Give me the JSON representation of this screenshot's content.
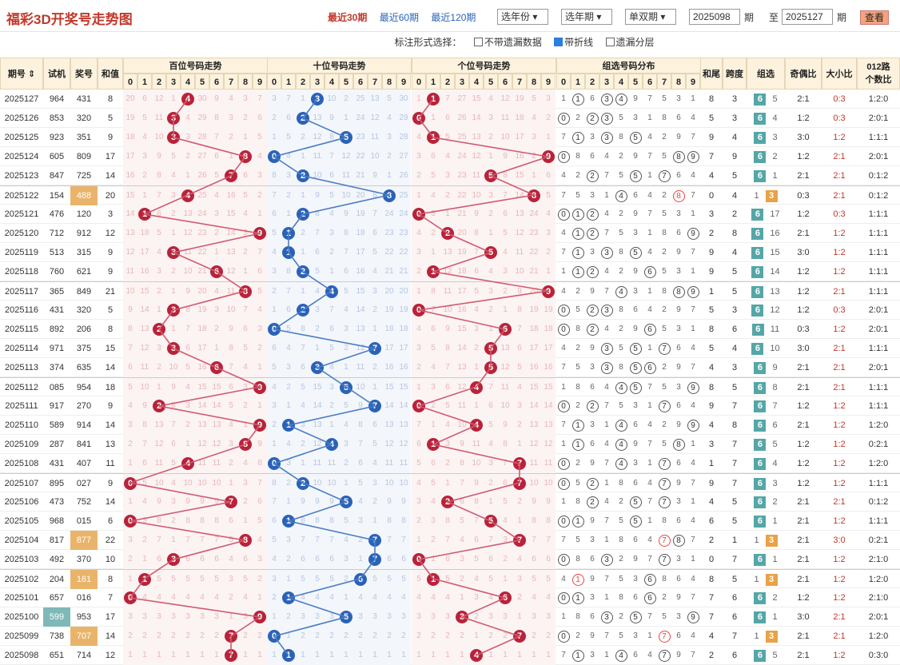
{
  "header": {
    "title": "福彩3D开奖号走势图",
    "periods": [
      "最近30期",
      "最近60期",
      "最近120期"
    ],
    "year_select": "选年份",
    "period_select": "选年期",
    "oddeven_select": "单双期",
    "from_value": "2025098",
    "period_unit": "期",
    "to_label": "至",
    "to_value": "2025127",
    "query": "查看"
  },
  "options": {
    "label": "标注形式选择：",
    "items": [
      {
        "label": "不带遗漏数据",
        "checked": false
      },
      {
        "label": "带折线",
        "checked": true
      },
      {
        "label": "遗漏分层",
        "checked": false
      }
    ]
  },
  "columns": {
    "issue": "期号",
    "trial": "试机",
    "draw": "奖号",
    "sum": "和值",
    "hundreds": "百位号码走势",
    "tens": "十位号码走势",
    "units": "个位号码走势",
    "group": "组选号码分布",
    "tail": "和尾",
    "span": "跨度",
    "group_type": "组选",
    "oddeven": "奇偶比",
    "bigsmall": "大小比",
    "road1": "012路",
    "road2": "个数比",
    "digits": [
      "0",
      "1",
      "2",
      "3",
      "4",
      "5",
      "6",
      "7",
      "8",
      "9"
    ]
  },
  "colors": {
    "hundreds_ball": "#b8233a",
    "tens_ball": "#2a62b8",
    "units_ball": "#b8233a",
    "group6": "#56a6a6",
    "group3": "#e9a247"
  },
  "rows": [
    {
      "issue": "2025127",
      "trial": "964",
      "draw": "431",
      "sum": "8",
      "tail": "8",
      "span": "3",
      "g": "6",
      "gm": "5",
      "oe": "2:1",
      "bs": "0:3",
      "road": "1:2:0"
    },
    {
      "issue": "2025126",
      "trial": "853",
      "draw": "320",
      "sum": "5",
      "tail": "5",
      "span": "3",
      "g": "6",
      "gm": "4",
      "oe": "1:2",
      "bs": "0:3",
      "road": "2:0:1"
    },
    {
      "issue": "2025125",
      "trial": "923",
      "draw": "351",
      "sum": "9",
      "tail": "9",
      "span": "4",
      "g": "6",
      "gm": "3",
      "oe": "3:0",
      "bs": "1:2",
      "road": "1:1:1"
    },
    {
      "issue": "2025124",
      "trial": "605",
      "draw": "809",
      "sum": "17",
      "tail": "7",
      "span": "9",
      "g": "6",
      "gm": "2",
      "oe": "1:2",
      "bs": "2:1",
      "road": "2:0:1"
    },
    {
      "issue": "2025123",
      "trial": "847",
      "draw": "725",
      "sum": "14",
      "tail": "4",
      "span": "5",
      "g": "6",
      "gm": "1",
      "oe": "2:1",
      "bs": "2:1",
      "road": "0:1:2"
    },
    {
      "issue": "2025122",
      "trial": "154",
      "draw": "488",
      "sum": "20",
      "tail": "0",
      "span": "4",
      "g": "1",
      "gm": "3",
      "oe": "0:3",
      "bs": "2:1",
      "road": "0:1:2"
    },
    {
      "issue": "2025121",
      "trial": "476",
      "draw": "120",
      "sum": "3",
      "tail": "3",
      "span": "2",
      "g": "6",
      "gm": "17",
      "oe": "1:2",
      "bs": "0:3",
      "road": "1:1:1"
    },
    {
      "issue": "2025120",
      "trial": "712",
      "draw": "912",
      "sum": "12",
      "tail": "2",
      "span": "8",
      "g": "6",
      "gm": "16",
      "oe": "2:1",
      "bs": "1:2",
      "road": "1:1:1"
    },
    {
      "issue": "2025119",
      "trial": "513",
      "draw": "315",
      "sum": "9",
      "tail": "9",
      "span": "4",
      "g": "6",
      "gm": "15",
      "oe": "3:0",
      "bs": "1:2",
      "road": "1:1:1"
    },
    {
      "issue": "2025118",
      "trial": "760",
      "draw": "621",
      "sum": "9",
      "tail": "9",
      "span": "5",
      "g": "6",
      "gm": "14",
      "oe": "1:2",
      "bs": "1:2",
      "road": "1:1:1"
    },
    {
      "issue": "2025117",
      "trial": "365",
      "draw": "849",
      "sum": "21",
      "tail": "1",
      "span": "5",
      "g": "6",
      "gm": "13",
      "oe": "1:2",
      "bs": "2:1",
      "road": "1:1:1"
    },
    {
      "issue": "2025116",
      "trial": "431",
      "draw": "320",
      "sum": "5",
      "tail": "5",
      "span": "3",
      "g": "6",
      "gm": "12",
      "oe": "1:2",
      "bs": "0:3",
      "road": "2:0:1"
    },
    {
      "issue": "2025115",
      "trial": "892",
      "draw": "206",
      "sum": "8",
      "tail": "8",
      "span": "6",
      "g": "6",
      "gm": "11",
      "oe": "0:3",
      "bs": "1:2",
      "road": "2:0:1"
    },
    {
      "issue": "2025114",
      "trial": "971",
      "draw": "375",
      "sum": "15",
      "tail": "5",
      "span": "4",
      "g": "6",
      "gm": "10",
      "oe": "3:0",
      "bs": "2:1",
      "road": "1:1:1"
    },
    {
      "issue": "2025113",
      "trial": "374",
      "draw": "635",
      "sum": "14",
      "tail": "4",
      "span": "3",
      "g": "6",
      "gm": "9",
      "oe": "2:1",
      "bs": "2:1",
      "road": "2:0:1"
    },
    {
      "issue": "2025112",
      "trial": "085",
      "draw": "954",
      "sum": "18",
      "tail": "8",
      "span": "5",
      "g": "6",
      "gm": "8",
      "oe": "2:1",
      "bs": "2:1",
      "road": "1:1:1"
    },
    {
      "issue": "2025111",
      "trial": "917",
      "draw": "270",
      "sum": "9",
      "tail": "9",
      "span": "7",
      "g": "6",
      "gm": "7",
      "oe": "1:2",
      "bs": "1:2",
      "road": "1:1:1"
    },
    {
      "issue": "2025110",
      "trial": "589",
      "draw": "914",
      "sum": "14",
      "tail": "4",
      "span": "8",
      "g": "6",
      "gm": "6",
      "oe": "2:1",
      "bs": "1:2",
      "road": "1:2:0"
    },
    {
      "issue": "2025109",
      "trial": "287",
      "draw": "841",
      "sum": "13",
      "tail": "3",
      "span": "7",
      "g": "6",
      "gm": "5",
      "oe": "1:2",
      "bs": "1:2",
      "road": "0:2:1"
    },
    {
      "issue": "2025108",
      "trial": "431",
      "draw": "407",
      "sum": "11",
      "tail": "1",
      "span": "7",
      "g": "6",
      "gm": "4",
      "oe": "1:2",
      "bs": "1:2",
      "road": "1:2:0"
    },
    {
      "issue": "2025107",
      "trial": "895",
      "draw": "027",
      "sum": "9",
      "tail": "9",
      "span": "7",
      "g": "6",
      "gm": "3",
      "oe": "1:2",
      "bs": "1:2",
      "road": "1:1:1"
    },
    {
      "issue": "2025106",
      "trial": "473",
      "draw": "752",
      "sum": "14",
      "tail": "4",
      "span": "5",
      "g": "6",
      "gm": "2",
      "oe": "2:1",
      "bs": "2:1",
      "road": "0:1:2"
    },
    {
      "issue": "2025105",
      "trial": "968",
      "draw": "015",
      "sum": "6",
      "tail": "6",
      "span": "5",
      "g": "6",
      "gm": "1",
      "oe": "2:1",
      "bs": "1:2",
      "road": "1:1:1"
    },
    {
      "issue": "2025104",
      "trial": "817",
      "draw": "877",
      "sum": "22",
      "tail": "2",
      "span": "1",
      "g": "1",
      "gm": "3",
      "oe": "2:1",
      "bs": "3:0",
      "road": "0:2:1"
    },
    {
      "issue": "2025103",
      "trial": "492",
      "draw": "370",
      "sum": "10",
      "tail": "0",
      "span": "7",
      "g": "6",
      "gm": "1",
      "oe": "2:1",
      "bs": "1:2",
      "road": "2:1:0"
    },
    {
      "issue": "2025102",
      "trial": "204",
      "draw": "161",
      "sum": "8",
      "tail": "8",
      "span": "5",
      "g": "1",
      "gm": "3",
      "oe": "2:1",
      "bs": "1:2",
      "road": "1:2:0"
    },
    {
      "issue": "2025101",
      "trial": "657",
      "draw": "016",
      "sum": "7",
      "tail": "7",
      "span": "6",
      "g": "6",
      "gm": "2",
      "oe": "1:2",
      "bs": "1:2",
      "road": "2:1:0"
    },
    {
      "issue": "2025100",
      "trial": "599",
      "draw": "953",
      "sum": "17",
      "tail": "7",
      "span": "6",
      "g": "6",
      "gm": "1",
      "oe": "3:0",
      "bs": "2:1",
      "road": "2:0:1"
    },
    {
      "issue": "2025099",
      "trial": "738",
      "draw": "707",
      "sum": "14",
      "tail": "4",
      "span": "7",
      "g": "1",
      "gm": "3",
      "oe": "2:1",
      "bs": "2:1",
      "road": "1:2:0"
    },
    {
      "issue": "2025098",
      "trial": "651",
      "draw": "714",
      "sum": "12",
      "tail": "2",
      "span": "6",
      "g": "6",
      "gm": "5",
      "oe": "2:1",
      "bs": "1:2",
      "road": "0:3:0"
    }
  ]
}
